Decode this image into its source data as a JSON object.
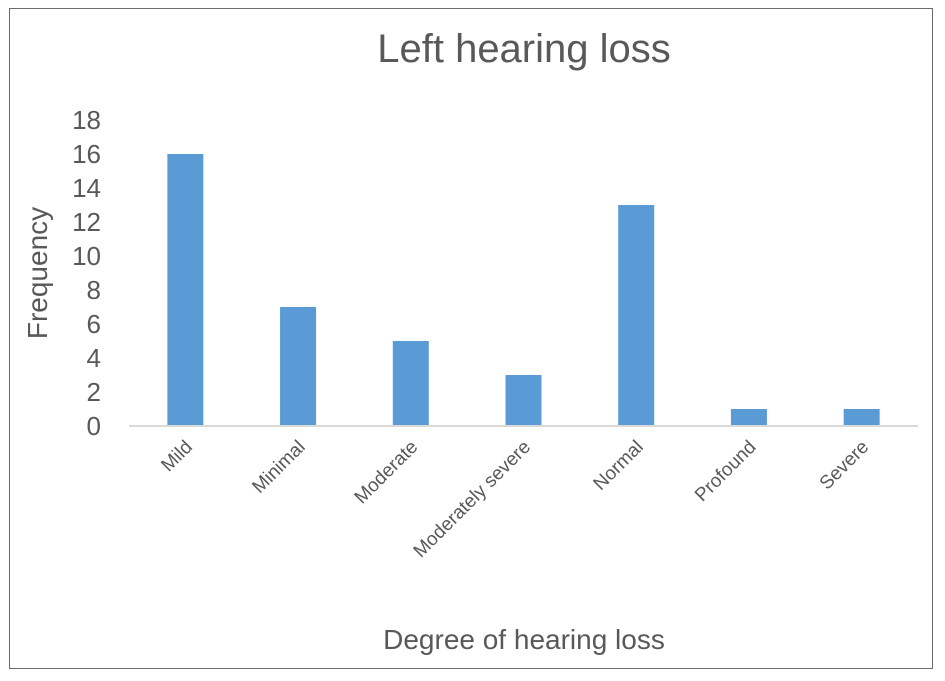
{
  "chart_data": {
    "type": "bar",
    "title": "Left hearing loss",
    "xlabel": "Degree of hearing loss",
    "ylabel": "Frequency",
    "categories": [
      "Mild",
      "Minimal",
      "Moderate",
      "Moderately severe",
      "Normal",
      "Profound",
      "Severe"
    ],
    "values": [
      16,
      7,
      5,
      3,
      13,
      1,
      1
    ],
    "ylim": [
      0,
      18
    ],
    "yticks": [
      0,
      2,
      4,
      6,
      8,
      10,
      12,
      14,
      16,
      18
    ],
    "grid": false,
    "bar_color": "#5b9bd5",
    "axis_color": "#d9d9d9"
  }
}
